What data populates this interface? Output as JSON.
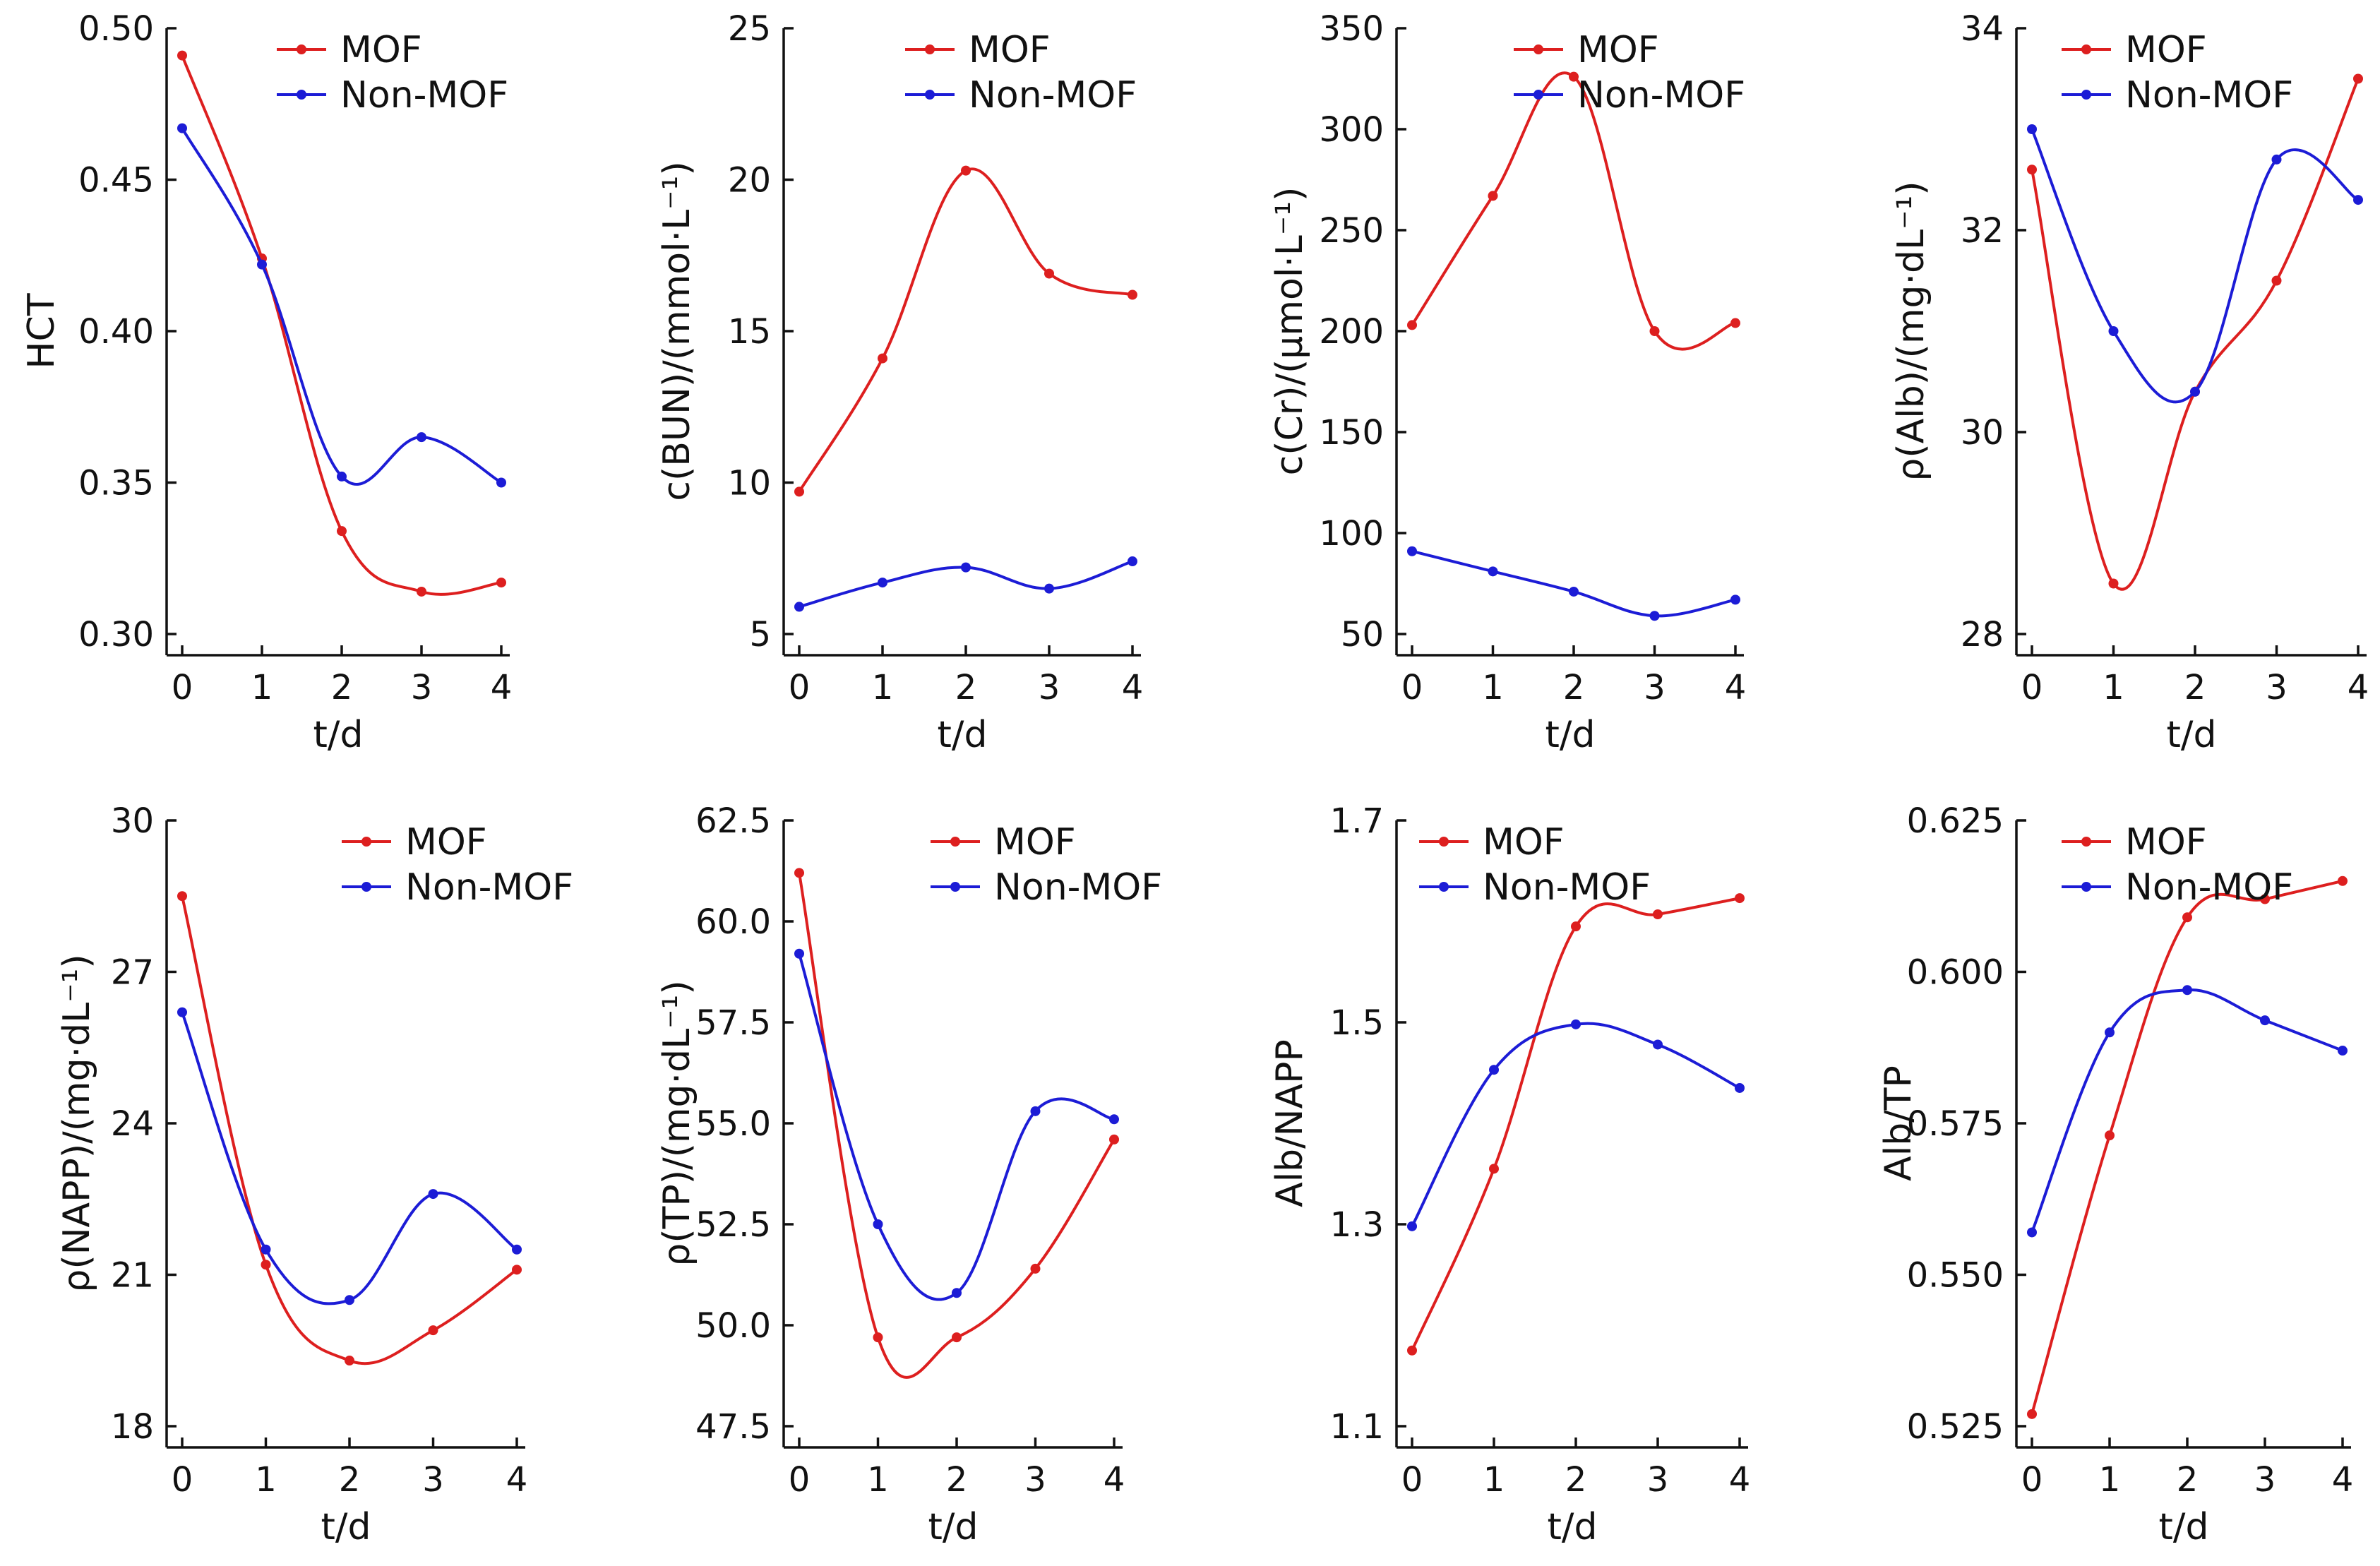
{
  "colors": {
    "mof": "#dd1f1f",
    "non_mof": "#1c1cd6",
    "axis": "#111111"
  },
  "chart_data": [
    {
      "type": "line",
      "title": "",
      "xlabel": "t/d",
      "ylabel": "HCT",
      "x": [
        0,
        1,
        2,
        3,
        4
      ],
      "xticks": [
        "0",
        "1",
        "2",
        "3",
        "4"
      ],
      "xlim": [
        0,
        4
      ],
      "ylim": [
        0.3,
        0.5
      ],
      "yticks": [
        0.3,
        0.35,
        0.4,
        0.45,
        0.5
      ],
      "ytick_labels": [
        "0.30",
        "0.35",
        "0.40",
        "0.45",
        "0.50"
      ],
      "series": [
        {
          "name": "MOF",
          "color": "#dd1f1f",
          "values": [
            0.491,
            0.424,
            0.334,
            0.314,
            0.317
          ]
        },
        {
          "name": "Non-MOF",
          "color": "#1c1cd6",
          "values": [
            0.467,
            0.422,
            0.352,
            0.365,
            0.35
          ]
        }
      ]
    },
    {
      "type": "line",
      "title": "",
      "xlabel": "t/d",
      "ylabel": "c(BUN)/(mmol·L⁻¹)",
      "x": [
        0,
        1,
        2,
        3,
        4
      ],
      "xticks": [
        "0",
        "1",
        "2",
        "3",
        "4"
      ],
      "xlim": [
        0,
        4
      ],
      "ylim": [
        5,
        25
      ],
      "yticks": [
        5,
        10,
        15,
        20,
        25
      ],
      "ytick_labels": [
        "5",
        "10",
        "15",
        "20",
        "25"
      ],
      "series": [
        {
          "name": "MOF",
          "color": "#dd1f1f",
          "values": [
            9.7,
            14.1,
            20.3,
            16.9,
            16.2
          ]
        },
        {
          "name": "Non-MOF",
          "color": "#1c1cd6",
          "values": [
            5.9,
            6.7,
            7.2,
            6.5,
            7.4
          ]
        }
      ]
    },
    {
      "type": "line",
      "title": "",
      "xlabel": "t/d",
      "ylabel": "c(Cr)/(μmol·L⁻¹)",
      "x": [
        0,
        1,
        2,
        3,
        4
      ],
      "xticks": [
        "0",
        "1",
        "2",
        "3",
        "4"
      ],
      "xlim": [
        0,
        4
      ],
      "ylim": [
        50,
        350
      ],
      "yticks": [
        50,
        100,
        150,
        200,
        250,
        300,
        350
      ],
      "ytick_labels": [
        "50",
        "100",
        "150",
        "200",
        "250",
        "300",
        "350"
      ],
      "series": [
        {
          "name": "MOF",
          "color": "#dd1f1f",
          "values": [
            203,
            267,
            326,
            200,
            204
          ]
        },
        {
          "name": "Non-MOF",
          "color": "#1c1cd6",
          "values": [
            91,
            81,
            71,
            59,
            67
          ]
        }
      ]
    },
    {
      "type": "line",
      "title": "",
      "xlabel": "t/d",
      "ylabel": "ρ(Alb)/(mg·dL⁻¹)",
      "x": [
        0,
        1,
        2,
        3,
        4
      ],
      "xticks": [
        "0",
        "1",
        "2",
        "3",
        "4"
      ],
      "xlim": [
        0,
        4
      ],
      "ylim": [
        28,
        34
      ],
      "yticks": [
        28,
        30,
        32,
        34
      ],
      "ytick_labels": [
        "28",
        "30",
        "32",
        "34"
      ],
      "series": [
        {
          "name": "MOF",
          "color": "#dd1f1f",
          "values": [
            32.6,
            28.5,
            30.4,
            31.5,
            33.5
          ]
        },
        {
          "name": "Non-MOF",
          "color": "#1c1cd6",
          "values": [
            33.0,
            31.0,
            30.4,
            32.7,
            32.3
          ]
        }
      ]
    },
    {
      "type": "line",
      "title": "",
      "xlabel": "t/d",
      "ylabel": "ρ(NAPP)/(mg·dL⁻¹)",
      "x": [
        0,
        1,
        2,
        3,
        4
      ],
      "xticks": [
        "0",
        "1",
        "2",
        "3",
        "4"
      ],
      "xlim": [
        0,
        4
      ],
      "ylim": [
        18,
        30
      ],
      "yticks": [
        18,
        21,
        24,
        27,
        30
      ],
      "ytick_labels": [
        "18",
        "21",
        "24",
        "27",
        "30"
      ],
      "series": [
        {
          "name": "MOF",
          "color": "#dd1f1f",
          "values": [
            28.5,
            21.2,
            19.3,
            19.9,
            21.1
          ]
        },
        {
          "name": "Non-MOF",
          "color": "#1c1cd6",
          "values": [
            26.2,
            21.5,
            20.5,
            22.6,
            21.5
          ]
        }
      ]
    },
    {
      "type": "line",
      "title": "",
      "xlabel": "t/d",
      "ylabel": "ρ(TP)/(mg·dL⁻¹)",
      "x": [
        0,
        1,
        2,
        3,
        4
      ],
      "xticks": [
        "0",
        "1",
        "2",
        "3",
        "4"
      ],
      "xlim": [
        0,
        4
      ],
      "ylim": [
        47.5,
        62.5
      ],
      "yticks": [
        47.5,
        50,
        52.5,
        55,
        57.5,
        60,
        62.5
      ],
      "ytick_labels": [
        "47.5",
        "50.0",
        "52.5",
        "55.0",
        "57.5",
        "60.0",
        "62.5"
      ],
      "series": [
        {
          "name": "MOF",
          "color": "#dd1f1f",
          "values": [
            61.2,
            49.7,
            49.7,
            51.4,
            54.6
          ]
        },
        {
          "name": "Non-MOF",
          "color": "#1c1cd6",
          "values": [
            59.2,
            52.5,
            50.8,
            55.3,
            55.1
          ]
        }
      ]
    },
    {
      "type": "line",
      "title": "",
      "xlabel": "t/d",
      "ylabel": "Alb/NAPP",
      "x": [
        0,
        1,
        2,
        3,
        4
      ],
      "xticks": [
        "0",
        "1",
        "2",
        "3",
        "4"
      ],
      "xlim": [
        0,
        4
      ],
      "ylim": [
        1.1,
        1.7
      ],
      "yticks": [
        1.1,
        1.3,
        1.5,
        1.7
      ],
      "ytick_labels": [
        "1.1",
        "1.3",
        "1.5",
        "1.7"
      ],
      "series": [
        {
          "name": "MOF",
          "color": "#dd1f1f",
          "values": [
            1.175,
            1.355,
            1.595,
            1.607,
            1.623
          ]
        },
        {
          "name": "Non-MOF",
          "color": "#1c1cd6",
          "values": [
            1.298,
            1.453,
            1.498,
            1.478,
            1.435
          ]
        }
      ]
    },
    {
      "type": "line",
      "title": "",
      "xlabel": "t/d",
      "ylabel": "Alb/TP",
      "x": [
        0,
        1,
        2,
        3,
        4
      ],
      "xticks": [
        "0",
        "1",
        "2",
        "3",
        "4"
      ],
      "xlim": [
        0,
        4
      ],
      "ylim": [
        0.525,
        0.625
      ],
      "yticks": [
        0.525,
        0.55,
        0.575,
        0.6,
        0.625
      ],
      "ytick_labels": [
        "0.525",
        "0.550",
        "0.575",
        "0.600",
        "0.625"
      ],
      "series": [
        {
          "name": "MOF",
          "color": "#dd1f1f",
          "values": [
            0.527,
            0.573,
            0.609,
            0.612,
            0.615
          ]
        },
        {
          "name": "Non-MOF",
          "color": "#1c1cd6",
          "values": [
            0.557,
            0.59,
            0.597,
            0.592,
            0.587
          ]
        }
      ]
    }
  ]
}
